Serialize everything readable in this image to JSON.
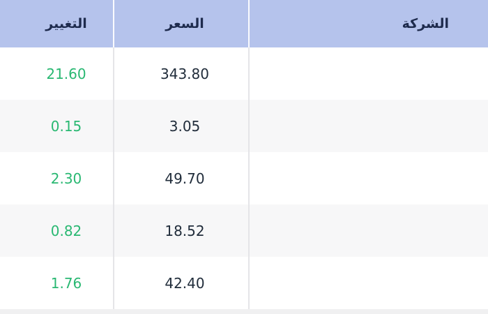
{
  "table": {
    "direction": "rtl",
    "columns": [
      {
        "key": "company",
        "label": "الشركة"
      },
      {
        "key": "price",
        "label": "السعر"
      },
      {
        "key": "change",
        "label": "التغيير"
      }
    ],
    "rows": [
      {
        "company": "",
        "price": "343.80",
        "change": "21.60"
      },
      {
        "company": "",
        "price": "3.05",
        "change": "0.15"
      },
      {
        "company": "",
        "price": "49.70",
        "change": "2.30"
      },
      {
        "company": "",
        "price": "18.52",
        "change": "0.82"
      },
      {
        "company": "",
        "price": "42.40",
        "change": "1.76"
      }
    ],
    "colors": {
      "header_bg": "#b5c3ec",
      "header_text": "#1e2b4d",
      "change_positive": "#29b872",
      "price_text": "#212d3b",
      "row_bg": "#ffffff",
      "row_alt_bg": "#f7f7f8",
      "divider_body": "#e5e5e8",
      "divider_header": "#fafbfe",
      "next_row_strip": "#f0f0f1"
    }
  }
}
